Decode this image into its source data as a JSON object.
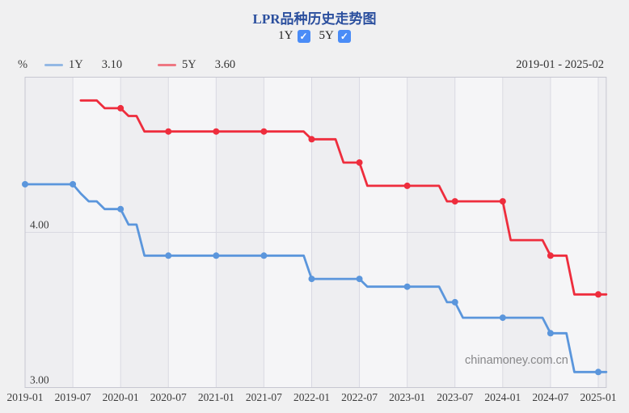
{
  "title": "LPR品种历史走势图",
  "controls": {
    "series_toggles": [
      {
        "label": "1Y",
        "checked": true
      },
      {
        "label": "5Y",
        "checked": true
      }
    ]
  },
  "legend": {
    "unit": "%",
    "items": [
      {
        "label": "1Y",
        "value": "3.10",
        "color": "#5b96dc"
      },
      {
        "label": "5Y",
        "value": "3.60",
        "color": "#ee2d3d"
      }
    ],
    "date_range": "2019-01 - 2025-02"
  },
  "watermark": "chinamoney.com.cn",
  "chart_data": {
    "type": "line",
    "title": "LPR品种历史走势图",
    "xlabel": "",
    "ylabel": "%",
    "x_start": "2019-01",
    "x_end": "2025-02",
    "ylim": [
      3.0,
      5.0
    ],
    "grid": true,
    "legend_position": "top-left",
    "x_tick_labels": [
      "2019-01",
      "2019-07",
      "2020-01",
      "2020-07",
      "2021-01",
      "2021-07",
      "2022-01",
      "2022-07",
      "2023-01",
      "2023-07",
      "2024-01",
      "2024-07",
      "2025-01"
    ],
    "y_ticks": [
      {
        "value": 3.0,
        "label": "3.00"
      },
      {
        "value": 4.0,
        "label": "4.00"
      }
    ],
    "marker_rule": "markers at every January and July data point",
    "series": [
      {
        "name": "1Y",
        "color": "#5b96dc",
        "current_value": 3.1,
        "start_month": "2019-01",
        "start_offset_months": 0,
        "monthly_values": [
          4.31,
          4.31,
          4.31,
          4.31,
          4.31,
          4.31,
          4.31,
          4.25,
          4.2,
          4.2,
          4.15,
          4.15,
          4.15,
          4.05,
          4.05,
          3.85,
          3.85,
          3.85,
          3.85,
          3.85,
          3.85,
          3.85,
          3.85,
          3.85,
          3.85,
          3.85,
          3.85,
          3.85,
          3.85,
          3.85,
          3.85,
          3.85,
          3.85,
          3.85,
          3.85,
          3.85,
          3.7,
          3.7,
          3.7,
          3.7,
          3.7,
          3.7,
          3.7,
          3.65,
          3.65,
          3.65,
          3.65,
          3.65,
          3.65,
          3.65,
          3.65,
          3.65,
          3.65,
          3.55,
          3.55,
          3.45,
          3.45,
          3.45,
          3.45,
          3.45,
          3.45,
          3.45,
          3.45,
          3.45,
          3.45,
          3.45,
          3.35,
          3.35,
          3.35,
          3.1,
          3.1,
          3.1,
          3.1,
          3.1
        ]
      },
      {
        "name": "5Y",
        "color": "#ee2d3d",
        "current_value": 3.6,
        "start_month": "2019-08",
        "start_offset_months": 7,
        "monthly_values": [
          4.85,
          4.85,
          4.85,
          4.8,
          4.8,
          4.8,
          4.75,
          4.75,
          4.65,
          4.65,
          4.65,
          4.65,
          4.65,
          4.65,
          4.65,
          4.65,
          4.65,
          4.65,
          4.65,
          4.65,
          4.65,
          4.65,
          4.65,
          4.65,
          4.65,
          4.65,
          4.65,
          4.65,
          4.65,
          4.6,
          4.6,
          4.6,
          4.6,
          4.45,
          4.45,
          4.45,
          4.3,
          4.3,
          4.3,
          4.3,
          4.3,
          4.3,
          4.3,
          4.3,
          4.3,
          4.3,
          4.2,
          4.2,
          4.2,
          4.2,
          4.2,
          4.2,
          4.2,
          4.2,
          3.95,
          3.95,
          3.95,
          3.95,
          3.95,
          3.85,
          3.85,
          3.85,
          3.6,
          3.6,
          3.6,
          3.6,
          3.6
        ]
      }
    ]
  }
}
